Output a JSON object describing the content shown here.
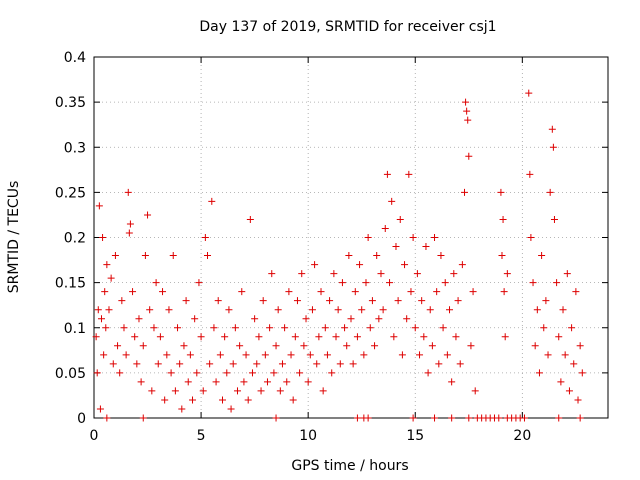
{
  "chart_data": {
    "type": "scatter",
    "title": "Day 137 of 2019, SRMTID for receiver csj1",
    "xlabel": "GPS time / hours",
    "ylabel": "SRMTID / TECUs",
    "xlim": [
      0,
      24
    ],
    "ylim": [
      0,
      0.4
    ],
    "xticks": [
      0,
      5,
      10,
      15,
      20
    ],
    "yticks": [
      0,
      0.05,
      0.1,
      0.15,
      0.2,
      0.25,
      0.3,
      0.35,
      0.4
    ],
    "xtick_labels": [
      "0",
      "5",
      "10",
      "15",
      "20"
    ],
    "ytick_labels": [
      "0",
      "0.05",
      "0.1",
      "0.15",
      "0.2",
      "0.25",
      "0.3",
      "0.35",
      "0.4"
    ],
    "grid": true,
    "marker": "+",
    "color": "#dd0000",
    "series": [
      {
        "points": [
          [
            0.1,
            0.09
          ],
          [
            0.15,
            0.05
          ],
          [
            0.2,
            0.12
          ],
          [
            0.25,
            0.235
          ],
          [
            0.3,
            0.01
          ],
          [
            0.35,
            0.11
          ],
          [
            0.4,
            0.2
          ],
          [
            0.45,
            0.07
          ],
          [
            0.5,
            0.14
          ],
          [
            0.55,
            0.1
          ],
          [
            0.6,
            0.17
          ],
          [
            0.7,
            0.12
          ],
          [
            0.8,
            0.155
          ],
          [
            0.9,
            0.06
          ],
          [
            1.0,
            0.18
          ],
          [
            1.1,
            0.08
          ],
          [
            1.2,
            0.05
          ],
          [
            1.3,
            0.13
          ],
          [
            1.4,
            0.1
          ],
          [
            1.5,
            0.07
          ],
          [
            1.6,
            0.25
          ],
          [
            1.65,
            0.205
          ],
          [
            1.7,
            0.215
          ],
          [
            1.8,
            0.14
          ],
          [
            1.9,
            0.09
          ],
          [
            2.0,
            0.06
          ],
          [
            2.1,
            0.11
          ],
          [
            2.2,
            0.04
          ],
          [
            2.3,
            0.08
          ],
          [
            2.4,
            0.18
          ],
          [
            2.5,
            0.225
          ],
          [
            2.6,
            0.12
          ],
          [
            2.7,
            0.03
          ],
          [
            2.8,
            0.1
          ],
          [
            2.9,
            0.15
          ],
          [
            3.0,
            0.06
          ],
          [
            3.1,
            0.09
          ],
          [
            3.2,
            0.14
          ],
          [
            3.3,
            0.02
          ],
          [
            3.4,
            0.07
          ],
          [
            3.5,
            0.12
          ],
          [
            3.6,
            0.05
          ],
          [
            3.7,
            0.18
          ],
          [
            3.8,
            0.03
          ],
          [
            3.9,
            0.1
          ],
          [
            4.0,
            0.06
          ],
          [
            4.1,
            0.01
          ],
          [
            4.2,
            0.08
          ],
          [
            4.3,
            0.13
          ],
          [
            4.4,
            0.04
          ],
          [
            4.5,
            0.07
          ],
          [
            4.6,
            0.02
          ],
          [
            4.7,
            0.11
          ],
          [
            4.8,
            0.05
          ],
          [
            4.9,
            0.15
          ],
          [
            5.0,
            0.09
          ],
          [
            5.1,
            0.03
          ],
          [
            5.2,
            0.2
          ],
          [
            5.3,
            0.18
          ],
          [
            5.4,
            0.06
          ],
          [
            5.5,
            0.24
          ],
          [
            5.6,
            0.1
          ],
          [
            5.7,
            0.04
          ],
          [
            5.8,
            0.13
          ],
          [
            5.9,
            0.07
          ],
          [
            6.0,
            0.02
          ],
          [
            6.1,
            0.09
          ],
          [
            6.2,
            0.05
          ],
          [
            6.3,
            0.12
          ],
          [
            6.4,
            0.01
          ],
          [
            6.5,
            0.06
          ],
          [
            6.6,
            0.1
          ],
          [
            6.7,
            0.03
          ],
          [
            6.8,
            0.08
          ],
          [
            6.9,
            0.14
          ],
          [
            7.0,
            0.04
          ],
          [
            7.1,
            0.07
          ],
          [
            7.2,
            0.02
          ],
          [
            7.3,
            0.22
          ],
          [
            7.4,
            0.05
          ],
          [
            7.5,
            0.11
          ],
          [
            7.6,
            0.06
          ],
          [
            7.7,
            0.09
          ],
          [
            7.8,
            0.03
          ],
          [
            7.9,
            0.13
          ],
          [
            8.0,
            0.07
          ],
          [
            8.1,
            0.04
          ],
          [
            8.2,
            0.1
          ],
          [
            8.3,
            0.16
          ],
          [
            8.4,
            0.05
          ],
          [
            8.5,
            0.08
          ],
          [
            8.6,
            0.12
          ],
          [
            8.7,
            0.03
          ],
          [
            8.8,
            0.06
          ],
          [
            8.9,
            0.1
          ],
          [
            9.0,
            0.04
          ],
          [
            9.1,
            0.14
          ],
          [
            9.2,
            0.07
          ],
          [
            9.3,
            0.02
          ],
          [
            9.4,
            0.09
          ],
          [
            9.5,
            0.13
          ],
          [
            9.6,
            0.05
          ],
          [
            9.7,
            0.16
          ],
          [
            9.8,
            0.08
          ],
          [
            9.9,
            0.11
          ],
          [
            10.0,
            0.04
          ],
          [
            10.1,
            0.07
          ],
          [
            10.2,
            0.12
          ],
          [
            10.3,
            0.17
          ],
          [
            10.4,
            0.06
          ],
          [
            10.5,
            0.09
          ],
          [
            10.6,
            0.14
          ],
          [
            10.7,
            0.03
          ],
          [
            10.8,
            0.1
          ],
          [
            10.9,
            0.07
          ],
          [
            11.0,
            0.13
          ],
          [
            11.1,
            0.05
          ],
          [
            11.2,
            0.16
          ],
          [
            11.3,
            0.09
          ],
          [
            11.4,
            0.12
          ],
          [
            11.5,
            0.06
          ],
          [
            11.6,
            0.15
          ],
          [
            11.7,
            0.1
          ],
          [
            11.8,
            0.08
          ],
          [
            11.9,
            0.18
          ],
          [
            12.0,
            0.11
          ],
          [
            12.1,
            0.06
          ],
          [
            12.2,
            0.14
          ],
          [
            12.3,
            0.09
          ],
          [
            12.4,
            0.17
          ],
          [
            12.5,
            0.12
          ],
          [
            12.6,
            0.07
          ],
          [
            12.7,
            0.15
          ],
          [
            12.8,
            0.2
          ],
          [
            12.9,
            0.1
          ],
          [
            13.0,
            0.13
          ],
          [
            13.1,
            0.08
          ],
          [
            13.2,
            0.18
          ],
          [
            13.3,
            0.11
          ],
          [
            13.4,
            0.16
          ],
          [
            13.5,
            0.12
          ],
          [
            13.6,
            0.21
          ],
          [
            13.7,
            0.27
          ],
          [
            13.8,
            0.15
          ],
          [
            13.9,
            0.24
          ],
          [
            14.0,
            0.09
          ],
          [
            14.1,
            0.19
          ],
          [
            14.2,
            0.13
          ],
          [
            14.3,
            0.22
          ],
          [
            14.4,
            0.07
          ],
          [
            14.5,
            0.17
          ],
          [
            14.6,
            0.11
          ],
          [
            14.7,
            0.27
          ],
          [
            14.8,
            0.14
          ],
          [
            14.9,
            0.2
          ],
          [
            15.0,
            0.1
          ],
          [
            15.1,
            0.16
          ],
          [
            15.2,
            0.07
          ],
          [
            15.3,
            0.13
          ],
          [
            15.4,
            0.09
          ],
          [
            15.5,
            0.19
          ],
          [
            15.6,
            0.05
          ],
          [
            15.7,
            0.12
          ],
          [
            15.8,
            0.08
          ],
          [
            15.9,
            0.2
          ],
          [
            16.0,
            0.14
          ],
          [
            16.1,
            0.06
          ],
          [
            16.2,
            0.18
          ],
          [
            16.3,
            0.1
          ],
          [
            16.4,
            0.15
          ],
          [
            16.5,
            0.07
          ],
          [
            16.6,
            0.12
          ],
          [
            16.7,
            0.04
          ],
          [
            16.8,
            0.16
          ],
          [
            16.9,
            0.09
          ],
          [
            17.0,
            0.13
          ],
          [
            17.1,
            0.06
          ],
          [
            17.2,
            0.17
          ],
          [
            17.3,
            0.25
          ],
          [
            17.35,
            0.35
          ],
          [
            17.4,
            0.34
          ],
          [
            17.45,
            0.33
          ],
          [
            17.5,
            0.29
          ],
          [
            17.6,
            0.08
          ],
          [
            17.7,
            0.14
          ],
          [
            17.8,
            0.03
          ],
          [
            19.0,
            0.25
          ],
          [
            19.05,
            0.18
          ],
          [
            19.1,
            0.22
          ],
          [
            19.15,
            0.14
          ],
          [
            19.2,
            0.09
          ],
          [
            19.3,
            0.16
          ],
          [
            20.3,
            0.36
          ],
          [
            20.35,
            0.27
          ],
          [
            20.4,
            0.2
          ],
          [
            20.5,
            0.15
          ],
          [
            20.6,
            0.08
          ],
          [
            20.7,
            0.12
          ],
          [
            20.8,
            0.05
          ],
          [
            20.9,
            0.18
          ],
          [
            21.0,
            0.1
          ],
          [
            21.1,
            0.13
          ],
          [
            21.2,
            0.07
          ],
          [
            21.3,
            0.25
          ],
          [
            21.4,
            0.32
          ],
          [
            21.45,
            0.3
          ],
          [
            21.5,
            0.22
          ],
          [
            21.6,
            0.15
          ],
          [
            21.7,
            0.09
          ],
          [
            21.8,
            0.04
          ],
          [
            21.9,
            0.12
          ],
          [
            22.0,
            0.07
          ],
          [
            22.1,
            0.16
          ],
          [
            22.2,
            0.03
          ],
          [
            22.3,
            0.1
          ],
          [
            22.4,
            0.06
          ],
          [
            22.5,
            0.14
          ],
          [
            22.6,
            0.02
          ],
          [
            22.7,
            0.08
          ],
          [
            22.8,
            0.05
          ],
          [
            0.6,
            0.0
          ],
          [
            2.3,
            0.0
          ],
          [
            8.5,
            0.0
          ],
          [
            12.3,
            0.0
          ],
          [
            12.6,
            0.0
          ],
          [
            12.8,
            0.0
          ],
          [
            14.9,
            0.0
          ],
          [
            15.9,
            0.0
          ],
          [
            16.7,
            0.0
          ],
          [
            17.5,
            0.0
          ],
          [
            17.9,
            0.0
          ],
          [
            18.1,
            0.0
          ],
          [
            18.3,
            0.0
          ],
          [
            18.5,
            0.0
          ],
          [
            18.7,
            0.0
          ],
          [
            18.9,
            0.0
          ],
          [
            19.3,
            0.0
          ],
          [
            19.5,
            0.0
          ],
          [
            19.7,
            0.0
          ],
          [
            19.9,
            0.0
          ],
          [
            20.1,
            0.0
          ],
          [
            21.7,
            0.0
          ],
          [
            22.7,
            0.0
          ]
        ]
      }
    ]
  }
}
